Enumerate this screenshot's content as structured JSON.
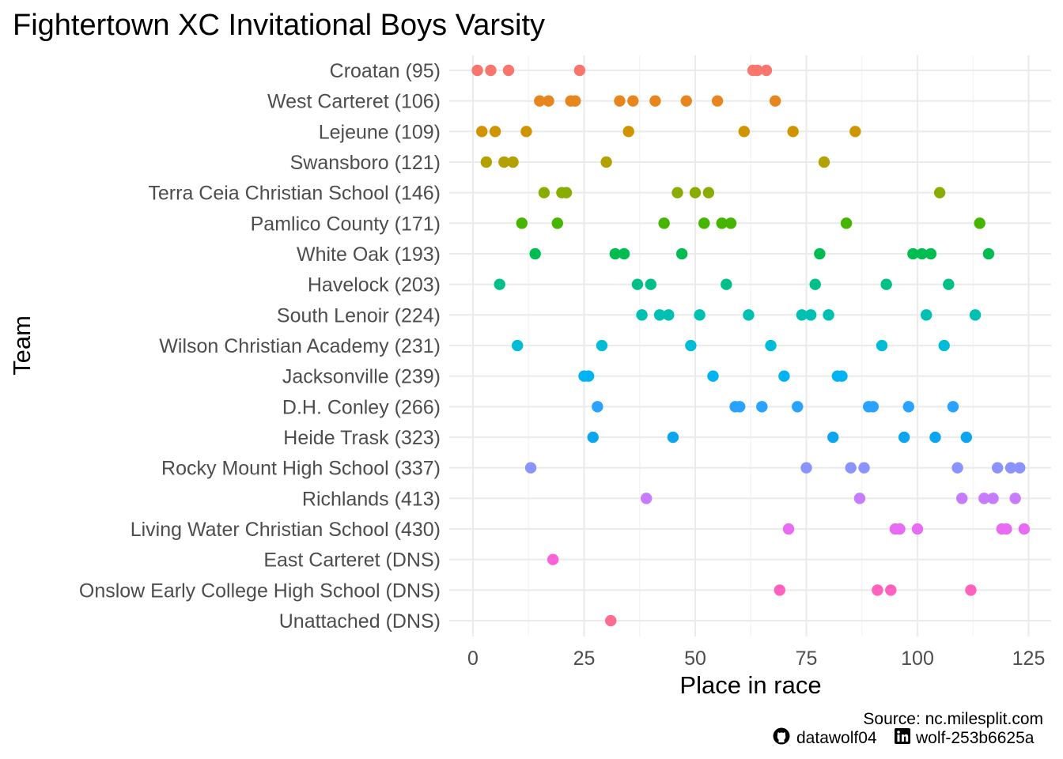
{
  "chart_data": {
    "type": "scatter",
    "title": "Fightertown XC Invitational Boys Varsity",
    "xlabel": "Place in race",
    "ylabel": "Team",
    "xlim": [
      -5,
      130
    ],
    "xticks": [
      0,
      25,
      50,
      75,
      100,
      125
    ],
    "grid": true,
    "legend": "none",
    "categories": [
      "Croatan (95)",
      "West Carteret (106)",
      "Lejeune (109)",
      "Swansboro (121)",
      "Terra Ceia Christian School (146)",
      "Pamlico County (171)",
      "White Oak (193)",
      "Havelock (203)",
      "South Lenoir (224)",
      "Wilson Christian Academy (231)",
      "Jacksonville (239)",
      "D.H. Conley (266)",
      "Heide Trask (323)",
      "Rocky Mount High School (337)",
      "Richlands (413)",
      "Living Water Christian School (430)",
      "East Carteret (DNS)",
      "Onslow Early College High School (DNS)",
      "Unattached (DNS)"
    ],
    "series": [
      {
        "category": "Croatan (95)",
        "color": "#F8766D",
        "x": [
          1,
          4,
          8,
          24,
          63,
          64,
          66
        ]
      },
      {
        "category": "West Carteret (106)",
        "color": "#E7851E",
        "x": [
          15,
          17,
          22,
          23,
          33,
          36,
          41,
          48,
          55,
          68
        ]
      },
      {
        "category": "Lejeune (109)",
        "color": "#D09400",
        "x": [
          2,
          5,
          12,
          35,
          61,
          72,
          86
        ]
      },
      {
        "category": "Swansboro (121)",
        "color": "#B2A100",
        "x": [
          3,
          7,
          9,
          30,
          79
        ]
      },
      {
        "category": "Terra Ceia Christian School (146)",
        "color": "#89AC00",
        "x": [
          16,
          20,
          21,
          46,
          50,
          53,
          105
        ]
      },
      {
        "category": "Pamlico County (171)",
        "color": "#45B500",
        "x": [
          11,
          19,
          43,
          52,
          56,
          58,
          84,
          114
        ]
      },
      {
        "category": "White Oak (193)",
        "color": "#00BC51",
        "x": [
          14,
          32,
          34,
          47,
          78,
          99,
          101,
          103,
          116
        ]
      },
      {
        "category": "Havelock (203)",
        "color": "#00C087",
        "x": [
          6,
          37,
          40,
          57,
          77,
          93,
          107
        ]
      },
      {
        "category": "South Lenoir (224)",
        "color": "#00C0B2",
        "x": [
          38,
          42,
          44,
          51,
          62,
          74,
          76,
          80,
          102,
          113
        ]
      },
      {
        "category": "Wilson Christian Academy (231)",
        "color": "#00BCD6",
        "x": [
          10,
          29,
          49,
          67,
          92,
          106
        ]
      },
      {
        "category": "Jacksonville (239)",
        "color": "#00B3F2",
        "x": [
          25,
          26,
          54,
          70,
          82,
          83
        ]
      },
      {
        "category": "D.H. Conley (266)",
        "color": "#29A3FF",
        "x": [
          28,
          59,
          60,
          65,
          73,
          89,
          90,
          98,
          108
        ]
      },
      {
        "category": "Heide Trask (323)",
        "color": "#0CA5F0",
        "x": [
          27,
          45,
          81,
          97,
          104,
          111
        ]
      },
      {
        "category": "Rocky Mount High School (337)",
        "color": "#8B93FF",
        "x": [
          13,
          75,
          85,
          88,
          109,
          118,
          121,
          123
        ]
      },
      {
        "category": "Richlands (413)",
        "color": "#C77CFF",
        "x": [
          39,
          87,
          110,
          115,
          117,
          122
        ]
      },
      {
        "category": "Living Water Christian School (430)",
        "color": "#E76BF3",
        "x": [
          71,
          95,
          96,
          100,
          119,
          120,
          124
        ]
      },
      {
        "category": "East Carteret (DNS)",
        "color": "#FA62DB",
        "x": [
          18
        ]
      },
      {
        "category": "Onslow Early College High School (DNS)",
        "color": "#FF62BC",
        "x": [
          69,
          91,
          94,
          112
        ]
      },
      {
        "category": "Unattached (DNS)",
        "color": "#FF6C91",
        "x": [
          31
        ]
      }
    ]
  },
  "caption": {
    "source": "Source: nc.milesplit.com",
    "github_icon": "github-icon",
    "github": "datawolf04",
    "linkedin_icon": "linkedin-icon",
    "linkedin": "wolf-253b6625a"
  }
}
